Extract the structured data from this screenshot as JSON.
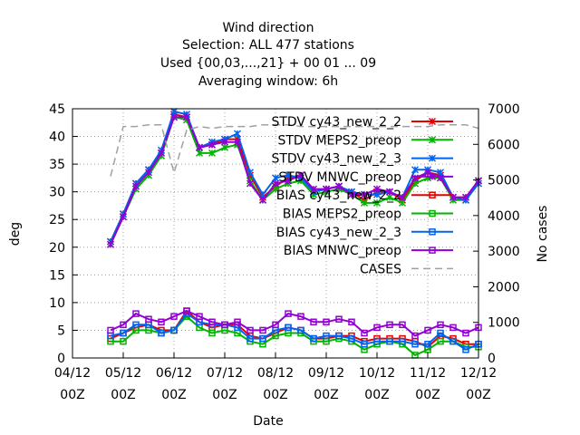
{
  "chart_data": {
    "type": "line",
    "title_lines": [
      "Wind direction",
      "Selection: ALL    477 stations",
      "Used {00,03,...,21} + 00 01 ... 09",
      "Averaging window:  6h"
    ],
    "xlabel": "Date",
    "ylabel": "deg",
    "y2label": "No cases",
    "ylim": [
      0,
      45
    ],
    "y2lim": [
      0,
      7000
    ],
    "yticks": [
      "0",
      "5",
      "10",
      "15",
      "20",
      "25",
      "30",
      "35",
      "40",
      "45"
    ],
    "y2ticks": [
      "0",
      "1000",
      "2000",
      "3000",
      "4000",
      "5000",
      "6000",
      "7000"
    ],
    "xtick_dates": [
      "04/12",
      "05/12",
      "06/12",
      "07/12",
      "08/12",
      "09/12",
      "10/12",
      "11/12",
      "12/12"
    ],
    "xtick_times": [
      "00Z",
      "00Z",
      "00Z",
      "00Z",
      "00Z",
      "00Z",
      "00Z",
      "00Z",
      "00Z"
    ],
    "xlim_days": [
      4,
      12
    ],
    "grid": true,
    "legend_position": "top-right",
    "x_days": [
      4.75,
      5.0,
      5.25,
      5.5,
      5.75,
      6.0,
      6.25,
      6.5,
      6.75,
      7.0,
      7.25,
      7.5,
      7.75,
      8.0,
      8.25,
      8.5,
      8.75,
      9.0,
      9.25,
      9.5,
      9.75,
      10.0,
      10.25,
      10.5,
      10.75,
      11.0,
      11.25,
      11.5,
      11.75,
      12.0
    ],
    "series": [
      {
        "name": "STDV cy43_new_2_2",
        "color": "#e60000",
        "marker": "x",
        "axis": "left",
        "values": [
          21,
          26,
          31.5,
          34,
          37,
          44,
          43.5,
          38,
          38.5,
          39.5,
          39.5,
          33,
          29,
          31,
          32.5,
          33,
          30,
          30.5,
          31,
          30,
          28.5,
          30,
          30,
          28.5,
          32,
          33.5,
          33,
          29,
          29,
          32
        ]
      },
      {
        "name": "STDV MEPS2_preop",
        "color": "#00b400",
        "marker": "x",
        "axis": "left",
        "values": [
          20.5,
          25.5,
          30.5,
          33,
          36.5,
          43.5,
          43,
          37,
          37,
          38,
          38.5,
          32,
          28.5,
          30.5,
          31.5,
          32,
          29.5,
          30,
          30.5,
          29.5,
          28,
          28,
          29,
          28,
          31.5,
          32.5,
          32.5,
          28.5,
          28.5,
          32
        ]
      },
      {
        "name": "STDV cy43_new_2_3",
        "color": "#0064f0",
        "marker": "x",
        "axis": "left",
        "values": [
          21,
          26,
          31.5,
          34,
          37.5,
          44.5,
          44,
          38,
          39,
          39.5,
          40.5,
          33.5,
          29.5,
          32.5,
          33,
          32.5,
          30,
          30.5,
          31,
          30,
          29.5,
          29.5,
          30,
          29,
          34,
          34,
          33.5,
          29,
          28.5,
          31.5
        ]
      },
      {
        "name": "STDV MNWC_preop",
        "color": "#9400d3",
        "marker": "x",
        "axis": "left",
        "values": [
          20.5,
          25.5,
          31,
          33.5,
          37,
          43.5,
          43.5,
          38,
          38.5,
          39,
          39,
          31.5,
          28.5,
          31.5,
          32,
          33,
          30.5,
          30.5,
          31,
          29.5,
          29.5,
          30.5,
          30,
          29,
          32.5,
          33.5,
          32.5,
          29,
          29,
          32
        ]
      },
      {
        "name": "BIAS cy43_new_2_2",
        "color": "#e60000",
        "marker": "square",
        "axis": "left",
        "values": [
          3.5,
          4.5,
          5.5,
          6,
          5,
          5,
          8.5,
          6.5,
          5.5,
          6,
          6,
          4,
          3.5,
          4.5,
          5.5,
          5,
          3.5,
          3.5,
          4,
          4,
          3,
          3.5,
          3.5,
          3.5,
          3,
          2,
          4,
          3.5,
          2.5,
          2.5
        ]
      },
      {
        "name": "BIAS MEPS2_preop",
        "color": "#00b400",
        "marker": "square",
        "axis": "left",
        "values": [
          3,
          3,
          5,
          5,
          4.5,
          5,
          7.5,
          5.5,
          4.5,
          5,
          4.5,
          3,
          2.5,
          4,
          4.5,
          4.5,
          3,
          3,
          3.5,
          3,
          1.5,
          2.5,
          3,
          2.5,
          0.5,
          1.5,
          3,
          3,
          2,
          2
        ]
      },
      {
        "name": "BIAS cy43_new_2_3",
        "color": "#0064f0",
        "marker": "square",
        "axis": "left",
        "values": [
          4,
          4.5,
          6,
          6,
          4.5,
          5,
          8,
          6.5,
          6,
          6,
          5.5,
          3.5,
          3.5,
          5,
          5.5,
          5,
          3.5,
          4,
          4,
          3.5,
          2.5,
          3,
          3,
          3,
          2.5,
          2.5,
          4.5,
          3,
          1.5,
          2.5
        ]
      },
      {
        "name": "BIAS MNWC_preop",
        "color": "#9400d3",
        "marker": "square",
        "axis": "left",
        "values": [
          5,
          6,
          8,
          7,
          6.5,
          7.5,
          8.5,
          7.5,
          6.5,
          6,
          6.5,
          5,
          5,
          6,
          8,
          7.5,
          6.5,
          6.5,
          7,
          6.5,
          4.5,
          5.5,
          6,
          6,
          4,
          5,
          6,
          5.5,
          4.5,
          5.5
        ]
      },
      {
        "name": "CASES",
        "color": "#a0a0a0",
        "marker": "none",
        "axis": "right",
        "values": [
          5100,
          6500,
          6500,
          6550,
          6550,
          5200,
          6400,
          6500,
          6450,
          6500,
          6500,
          6500,
          6550,
          6550,
          6550,
          6500,
          6500,
          6500,
          6500,
          6500,
          6500,
          6500,
          6500,
          6500,
          6500,
          6500,
          6550,
          6550,
          6550,
          6450
        ]
      }
    ]
  }
}
